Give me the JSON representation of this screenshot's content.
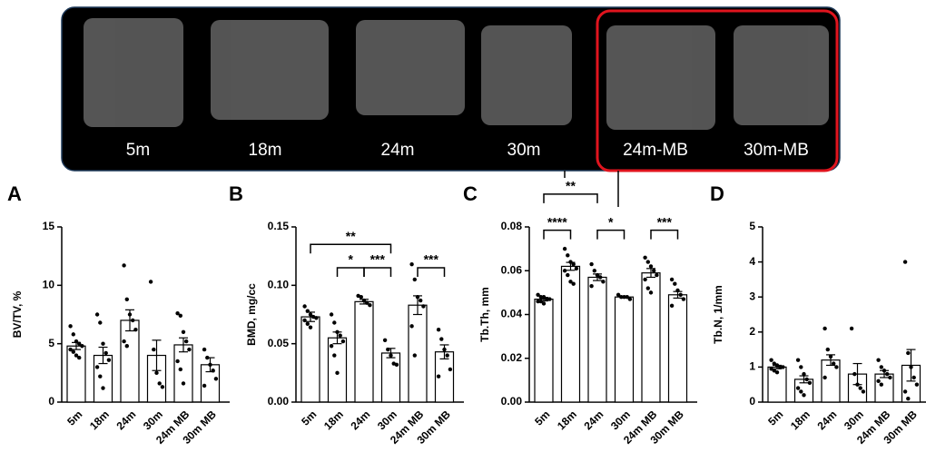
{
  "images": {
    "labels": [
      "5m",
      "18m",
      "24m",
      "30m",
      "24m-MB",
      "30m-MB"
    ]
  },
  "chart_data": [
    {
      "type": "bar",
      "panel": "A",
      "ylabel": "BV/TV, %",
      "categories": [
        "5m",
        "18m",
        "24m",
        "30m",
        "24m MB",
        "30m MB"
      ],
      "values": [
        4.8,
        4.0,
        7.0,
        4.0,
        4.9,
        3.2
      ],
      "errors": [
        0.3,
        0.7,
        0.9,
        1.3,
        0.6,
        0.6
      ],
      "points": [
        [
          6.5,
          5.8,
          5.2,
          5.0,
          4.8,
          4.5,
          4.3,
          4.0,
          3.8
        ],
        [
          7.5,
          6.8,
          5.0,
          4.2,
          3.6,
          3.0,
          2.2,
          1.2
        ],
        [
          11.7,
          8.8,
          7.5,
          7.0,
          6.2,
          5.2,
          4.8
        ],
        [
          10.3,
          4.5,
          2.5,
          1.6,
          1.3
        ],
        [
          7.6,
          7.4,
          6.0,
          5.2,
          4.5,
          3.5,
          2.8,
          1.6
        ],
        [
          4.5,
          3.8,
          3.2,
          2.7,
          2.0,
          1.4
        ]
      ],
      "ylim": [
        0,
        15
      ],
      "yticks": [
        0,
        5,
        10,
        15
      ],
      "annotations": []
    },
    {
      "type": "bar",
      "panel": "B",
      "ylabel": "BMD, mg/cc",
      "categories": [
        "5m",
        "18m",
        "24m",
        "30m",
        "24m MB",
        "30m MB"
      ],
      "values": [
        0.073,
        0.055,
        0.086,
        0.042,
        0.083,
        0.043
      ],
      "errors": [
        0.004,
        0.005,
        0.002,
        0.004,
        0.008,
        0.006
      ],
      "points": [
        [
          0.082,
          0.078,
          0.075,
          0.073,
          0.072,
          0.07,
          0.067,
          0.064
        ],
        [
          0.075,
          0.068,
          0.06,
          0.057,
          0.052,
          0.048,
          0.04,
          0.025
        ],
        [
          0.091,
          0.09,
          0.087,
          0.085,
          0.083
        ],
        [
          0.053,
          0.045,
          0.04,
          0.033,
          0.032
        ],
        [
          0.118,
          0.105,
          0.09,
          0.087,
          0.082,
          0.065,
          0.04
        ],
        [
          0.062,
          0.054,
          0.045,
          0.04,
          0.028,
          0.022
        ]
      ],
      "ylim": [
        0,
        0.15
      ],
      "yticks": [
        {
          "value": 0,
          "label": "0.00"
        },
        {
          "value": 0.05,
          "label": "0.05"
        },
        {
          "value": 0.1,
          "label": "0.10"
        },
        {
          "value": 0.15,
          "label": "0.15"
        }
      ],
      "annotations": [
        {
          "label": "**",
          "from": "5m",
          "to": "30m",
          "y": 0.135
        },
        {
          "label": "*",
          "from": "18m",
          "to": "24m",
          "y": 0.115
        },
        {
          "label": "***",
          "from": "24m",
          "to": "30m",
          "y": 0.115
        },
        {
          "label": "***",
          "from": "24m MB",
          "to": "30m MB",
          "y": 0.115
        }
      ]
    },
    {
      "type": "bar",
      "panel": "C",
      "ylabel": "Tb.Th, mm",
      "categories": [
        "5m",
        "18m",
        "24m",
        "30m",
        "24m MB",
        "30m MB"
      ],
      "values": [
        0.047,
        0.062,
        0.057,
        0.048,
        0.059,
        0.049
      ],
      "errors": [
        0.0008,
        0.0018,
        0.0015,
        0.0004,
        0.002,
        0.0015
      ],
      "points": [
        [
          0.049,
          0.048,
          0.048,
          0.047,
          0.047,
          0.046,
          0.046,
          0.045
        ],
        [
          0.07,
          0.067,
          0.064,
          0.063,
          0.061,
          0.06,
          0.058,
          0.055,
          0.054
        ],
        [
          0.063,
          0.06,
          0.058,
          0.057,
          0.055,
          0.053
        ],
        [
          0.049,
          0.048,
          0.048,
          0.048,
          0.047
        ],
        [
          0.066,
          0.064,
          0.062,
          0.06,
          0.058,
          0.056,
          0.052,
          0.05
        ],
        [
          0.056,
          0.054,
          0.051,
          0.049,
          0.047,
          0.044
        ]
      ],
      "ylim": [
        0,
        0.08
      ],
      "yticks": [
        {
          "value": 0,
          "label": "0.00"
        },
        {
          "value": 0.02,
          "label": "0.02"
        },
        {
          "value": 0.04,
          "label": "0.04"
        },
        {
          "value": 0.06,
          "label": "0.06"
        },
        {
          "value": 0.08,
          "label": "0.08"
        }
      ],
      "annotations": [
        {
          "label": "**",
          "from": "5m",
          "to": "24m",
          "y": 0.095
        },
        {
          "label": "****",
          "from": "5m",
          "to": "18m",
          "y": 0.0785
        },
        {
          "label": "*",
          "from": "24m",
          "to": "30m",
          "y": 0.0785
        },
        {
          "label": "***",
          "from": "24m MB",
          "to": "30m MB",
          "y": 0.0785
        }
      ]
    },
    {
      "type": "bar",
      "panel": "D",
      "ylabel": "Tb.N, 1/mm",
      "categories": [
        "5m",
        "18m",
        "24m",
        "30m",
        "24m MB",
        "30m MB"
      ],
      "values": [
        1.0,
        0.65,
        1.2,
        0.8,
        0.8,
        1.05
      ],
      "errors": [
        0.05,
        0.1,
        0.15,
        0.3,
        0.1,
        0.45
      ],
      "points": [
        [
          1.2,
          1.1,
          1.05,
          1.0,
          1.0,
          0.95,
          0.9,
          0.85
        ],
        [
          1.2,
          1.0,
          0.8,
          0.65,
          0.55,
          0.4,
          0.3,
          0.2
        ],
        [
          2.1,
          1.5,
          1.3,
          1.1,
          1.0,
          0.7
        ],
        [
          2.1,
          0.8,
          0.5,
          0.4,
          0.3
        ],
        [
          1.2,
          1.0,
          0.9,
          0.8,
          0.7,
          0.6,
          0.5
        ],
        [
          4.0,
          1.4,
          1.0,
          0.7,
          0.5,
          0.3,
          0.1
        ]
      ],
      "ylim": [
        0,
        5
      ],
      "yticks": [
        0,
        1,
        2,
        3,
        4,
        5
      ],
      "annotations": []
    }
  ]
}
